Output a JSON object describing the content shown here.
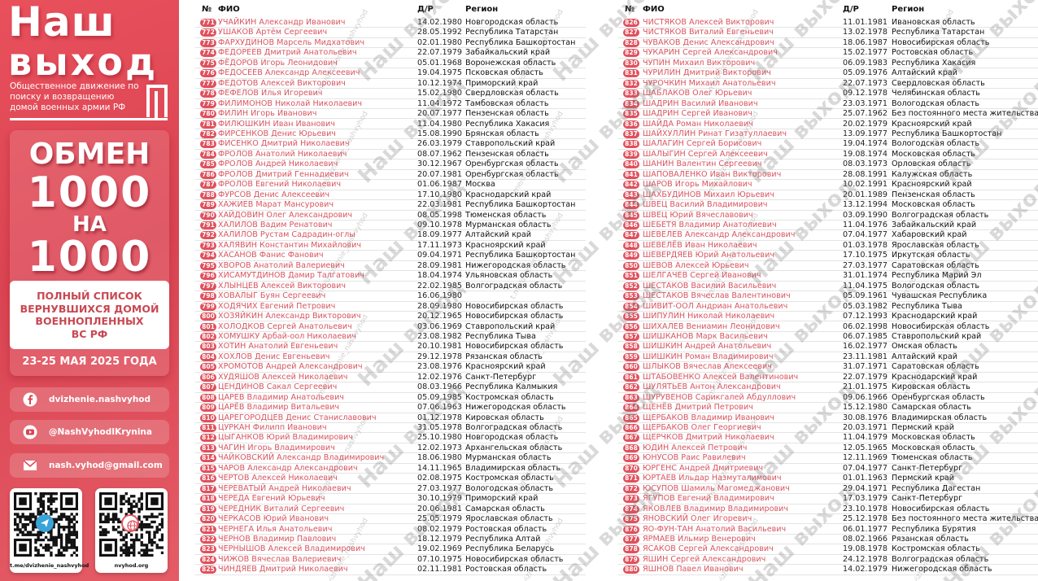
{
  "sidebar": {
    "brand_line1": "Наш",
    "brand_line2": "выход",
    "subtitle": "Общественное движение по поиску и возвращению домой военных армии РФ",
    "exchange": "ОБМЕН",
    "number1": "1000",
    "na": "НА",
    "number2": "1000",
    "list_title_lines": [
      "ПОЛНЫЙ СПИСОК",
      "ВЕРНУВШИХСЯ ДОМОЙ",
      "ВОЕННОПЛЕННЫХ",
      "ВС РФ"
    ],
    "dates": "23-25 МАЯ 2025 ГОДА",
    "contacts": [
      {
        "icon": "facebook-icon",
        "text": "dvizhenie.nashvyhod"
      },
      {
        "icon": "youtube-icon",
        "text": "@NashVyhodIKrynina"
      },
      {
        "icon": "mail-icon",
        "text": "nash.vyhod@gmail.com"
      }
    ],
    "qr_codes": [
      {
        "icon": "telegram-icon",
        "label": "t.me/dvizhenie_nashvyhod",
        "center_color": "#3aa3d8"
      },
      {
        "icon": "globe-icon",
        "label": "nvyhod.org",
        "center_color": "#e05862"
      }
    ]
  },
  "watermark": {
    "brand": "Наш выход",
    "link": "t.me/dvizhenie_nashvyhod"
  },
  "colors": {
    "accent": "#e0505c",
    "name_text": "#d8555f",
    "sidebar_bg": "#db4452"
  },
  "headers": {
    "num": "№",
    "name": "ФИО",
    "dob": "Д/Р",
    "region": "Регион"
  },
  "table_left": {
    "rows": [
      [
        "771",
        "УЧАЙКИН Александр Иванович",
        "14.02.1980",
        "Новгородская область"
      ],
      [
        "772",
        "УШАКОВ Артём Сергеевич",
        "28.05.1992",
        "Республика Татарстан"
      ],
      [
        "773",
        "ФАРХУДИНОВ Марсель Мидхатович",
        "02.01.1980",
        "Республика Башкортостан"
      ],
      [
        "774",
        "ФЕДОРЕЕВ Дмитрий Анатольевич",
        "22.07.1979",
        "Забайкальский край"
      ],
      [
        "775",
        "ФЁДОРОВ Игорь Леонидович",
        "05.01.1968",
        "Воронежская область"
      ],
      [
        "776",
        "ФЕДОСЕЕВ Александр Алексеевич",
        "19.04.1975",
        "Псковская область"
      ],
      [
        "777",
        "ФЕДОТОВ Алексей Викторович",
        "10.12.1974",
        "Приморский край"
      ],
      [
        "778",
        "ФЕФЕЛОВ Илья Игоревич",
        "15.02.1980",
        "Свердловская область"
      ],
      [
        "779",
        "ФИЛИМОНОВ Николай Николаевич",
        "11.04.1972",
        "Тамбовская область"
      ],
      [
        "780",
        "ФИЛИН Игорь Иванович",
        "20.07.1977",
        "Пензенская область"
      ],
      [
        "781",
        "ФИЛЮШКИН Иван Иванович",
        "11.04.1980",
        "Республика Хакасия"
      ],
      [
        "782",
        "ФИРСЕНКОВ Денис Юрьевич",
        "15.08.1990",
        "Брянская область"
      ],
      [
        "783",
        "ФИСЕНКО Дмитрий Николаевич",
        "26.03.1979",
        "Ставропольский край"
      ],
      [
        "784",
        "ФРОЛОВ Анатолий Николаевич",
        "08.07.1962",
        "Пензенская область"
      ],
      [
        "785",
        "ФРОЛОВ Андрей Николаевич",
        "30.12.1967",
        "Оренбургская область"
      ],
      [
        "786",
        "ФРОЛОВ Дмитрий Геннадиевич",
        "20.07.1981",
        "Оренбургская область"
      ],
      [
        "787",
        "ФРОЛОВ Евгений Николаевич",
        "01.06.1987",
        "Москва"
      ],
      [
        "788",
        "ФУРСОВ Денис Алексеевич",
        "17.10.1980",
        "Краснодарский край"
      ],
      [
        "789",
        "ХАЖИЕВ Марат Мансурович",
        "22.03.1981",
        "Республика Башкортостан"
      ],
      [
        "790",
        "ХАЙДОВИН Олег Александрович",
        "08.05.1998",
        "Тюменская область"
      ],
      [
        "791",
        "ХАЛИЛОВ Вадим Ренатович",
        "09.10.1978",
        "Мурманская область"
      ],
      [
        "792",
        "ХАЛИЛОВ Рустам Садрадин-оглы",
        "18.09.1977",
        "Алтайский край"
      ],
      [
        "793",
        "ХАЛЯВИН Константин Михайлович",
        "17.11.1973",
        "Красноярский край"
      ],
      [
        "794",
        "ХАСАНОВ Фанис Фанович",
        "09.04.1971",
        "Республика Башкортостан"
      ],
      [
        "795",
        "ХВОРОВ Анатолий Валериевич",
        "28.09.1981",
        "Нижегородская область"
      ],
      [
        "796",
        "ХИСАМУТДИНОВ Дамир Талгатович",
        "18.04.1974",
        "Ульяновская область"
      ],
      [
        "797",
        "ХЛЫНЦЕВ Алексей Викторович",
        "22.02.1985",
        "Волгоградская область"
      ],
      [
        "798",
        "ХОВАЛЫГ Буян Сергеевич",
        "16.06.1980",
        ""
      ],
      [
        "799",
        "ХОДЯЧИХ Евгений Петрович",
        "28.09.1980",
        "Новосибирская область"
      ],
      [
        "800",
        "ХОЗЯЙКИН Александр Викторович",
        "20.12.1965",
        "Новосибирская область"
      ],
      [
        "801",
        "ХОЛОДКОВ Сергей Анатольевич",
        "03.06.1969",
        "Ставропольский край"
      ],
      [
        "802",
        "ХОМУШКУ Арбай-оол Николаевич",
        "23.08.1982",
        "Республика Тыва"
      ],
      [
        "803",
        "ХОТИН Анатолий Евгеньевич",
        "20.10.1981",
        "Новосибирская область"
      ],
      [
        "804",
        "ХОХЛОВ Денис Евгеньевич",
        "29.12.1978",
        "Рязанская область"
      ],
      [
        "805",
        "ХРОМОТОВ Андрей Александрович",
        "23.08.1976",
        "Красноярский край"
      ],
      [
        "806",
        "ХУДЯШОВ Алексей Николаевич",
        "12.02.1976",
        "Санкт-Петербург"
      ],
      [
        "807",
        "ЦЕНДИНОВ Сакал Сергеевич",
        "08.03.1966",
        "Республика Калмыкия"
      ],
      [
        "808",
        "ЦАРЕВ Владимир Анатольевич",
        "05.09.1985",
        "Костромская область"
      ],
      [
        "809",
        "ЦАРЁВ Владимир Витальевич",
        "07.06.1963",
        "Нижегородская область"
      ],
      [
        "810",
        "ЦАРЕГОРОДЦЕВ Денис Станиславович",
        "01.12.1978",
        "Кировская область"
      ],
      [
        "811",
        "ЦУРКАН Филипп Иванович",
        "31.05.1978",
        "Волгоградская область"
      ],
      [
        "812",
        "ЦЫГАНКОВ Юрий Владимирович",
        "25.10.1980",
        "Новгородская область"
      ],
      [
        "813",
        "ЧАГИН Игорь Владимирович",
        "12.02.1973",
        "Архангельская область"
      ],
      [
        "814",
        "ЧАЙКОВСКИЙ Александр Владимирович",
        "18.06.1980",
        "Мурманская область"
      ],
      [
        "815",
        "ЧАРОВ Александр Александрович",
        "14.11.1965",
        "Владимирская область"
      ],
      [
        "816",
        "ЧЕРТОВ Алексей Николаевич",
        "02.08.1975",
        "Костромская область"
      ],
      [
        "817",
        "ЧЕРЕВАТЫЙ Андрей Николаевич",
        "27.03.1977",
        "Вологодская область"
      ],
      [
        "818",
        "ЧЕРЕДА Евгений Юрьевич",
        "30.10.1979",
        "Приморский край"
      ],
      [
        "819",
        "ЧЕРЕДНИК Виталий Сергеевич",
        "20.06.1981",
        "Самарская область"
      ],
      [
        "820",
        "ЧЕРКАСОВ Юрий Иванович",
        "25.05.1979",
        "Ярославская область"
      ],
      [
        "821",
        "ЧЕРНЕГА Илья Анатольевич",
        "08.02.1979",
        "Ростовская область"
      ],
      [
        "822",
        "ЧЕРНОВ Владимир Павлович",
        "18.12.1979",
        "Республика Алтай"
      ],
      [
        "823",
        "ЧЕРНЫШОВ Алексей Владимирович",
        "19.02.1969",
        "Республика Беларусь"
      ],
      [
        "824",
        "ЧИЖОВ Вячеслав Валериевич",
        "07.10.1975",
        "Новосибирская область"
      ],
      [
        "825",
        "ЧИНДЯЕВ Дмитрий Николаевич",
        "02.11.1981",
        "Ростовская область"
      ]
    ]
  },
  "table_right": {
    "rows": [
      [
        "826",
        "ЧИСТЯКОВ Алексей Викторович",
        "11.01.1981",
        "Ивановская область"
      ],
      [
        "827",
        "ЧИСТЯКОВ Виталий Евгеньевич",
        "13.02.1978",
        "Республика Татарстан"
      ],
      [
        "828",
        "ЧУВАКОВ Денис Александрович",
        "18.06.1987",
        "Новосибирская область"
      ],
      [
        "829",
        "ЧУКАРИН Сергей Александрович",
        "15.02.1977",
        "Ростовская область"
      ],
      [
        "830",
        "ЧУПИН Михаил Викторович",
        "06.09.1983",
        "Республика Хакасия"
      ],
      [
        "831",
        "ЧУРИЛИН Дмитрий Викторович",
        "05.09.1976",
        "Алтайский край"
      ],
      [
        "832",
        "ЧУРОЧКИН Михаил Анатольевич",
        "22.07.1973",
        "Свердловская область"
      ],
      [
        "833",
        "ШАБЛАКОВ Олег Юрьевич",
        "09.12.1978",
        "Челябинская область"
      ],
      [
        "834",
        "ШАДРИН Василий Иванович",
        "23.03.1971",
        "Вологодская область"
      ],
      [
        "835",
        "ШАДРИН Сергей Иванович",
        "25.07.1962",
        "Без постоянного места жительства"
      ],
      [
        "836",
        "ШАЙДА Роман Николаевич",
        "20.02.1979",
        "Красноярский край"
      ],
      [
        "837",
        "ШАЙХУЛЛИН Ринат Гизатуллаевич",
        "13.09.1977",
        "Республика Башкортостан"
      ],
      [
        "838",
        "ШАЛАГИН Сергей Борисович",
        "19.04.1974",
        "Вологодская область"
      ],
      [
        "839",
        "ШАЛЫГИН Сергей Алексеевич",
        "19.08.1974",
        "Московская область"
      ],
      [
        "840",
        "ШАНИН Валентин Сергеевич",
        "08.03.1973",
        "Орловская область"
      ],
      [
        "841",
        "ШАПОВАЛЕНКО Иван Викторович",
        "28.08.1991",
        "Калужская область"
      ],
      [
        "842",
        "ШАРОВ Игорь Михайлович",
        "10.02.1991",
        "Красноярский край"
      ],
      [
        "843",
        "ШАХБУДИНОВ Михаил Юрьевич",
        "20.01.1989",
        "Пензенская область"
      ],
      [
        "844",
        "ШВЕЦ Василий Владимирович",
        "13.12.1994",
        "Московская область"
      ],
      [
        "845",
        "ШВЕЦ Юрий Вячеславович",
        "03.09.1990",
        "Волгоградская область"
      ],
      [
        "846",
        "ШЕБЕТЯ Владимир Анатолиевич",
        "11.04.1976",
        "Забайкальский край"
      ],
      [
        "847",
        "ШЕВЕЛЕВ Александр Александрович",
        "07.04.1977",
        "Хабаровский край"
      ],
      [
        "848",
        "ШЕВЕЛЁВ Иван Николаевич",
        "01.03.1978",
        "Ярославская область"
      ],
      [
        "849",
        "ШЕВЕРДЯЕВ Юрий Анатольевич",
        "17.10.1975",
        "Иркутская область"
      ],
      [
        "850",
        "ШЕВОВ Алексей Юрьевич",
        "27.03.1977",
        "Саратовская область"
      ],
      [
        "851",
        "ШЕЛГАЧЕВ Сергей Иванович",
        "31.01.1974",
        "Республика Марий Эл"
      ],
      [
        "852",
        "ШЕСТАКОВ Василий Васильевич",
        "11.04.1975",
        "Вологодская область"
      ],
      [
        "853",
        "ШЕСТАКОВ Вячеслав Валентинович",
        "05.09.1961",
        "Чувашская Республика"
      ],
      [
        "854",
        "ШИВИТ-ООЛ Андриан Анатольевич",
        "05.03.1982",
        "Республика Тыва"
      ],
      [
        "855",
        "ШИПУЛИН Николай Николаевич",
        "07.12.1993",
        "Краснодарский край"
      ],
      [
        "856",
        "ШИХАЛЕВ Вениамин Леонидович",
        "06.02.1998",
        "Новосибирская область"
      ],
      [
        "857",
        "ШИШКАНОВ Марк Васильевич",
        "06.07.1985",
        "Ставропольский край"
      ],
      [
        "858",
        "ШИШКИН Андрей Анатольевич",
        "16.02.1977",
        "Омская область"
      ],
      [
        "859",
        "ШИШКИН Роман Владимирович",
        "23.11.1981",
        "Алтайский край"
      ],
      [
        "860",
        "ШЛЫКОВ Вячеслав Алексеевич",
        "31.07.1971",
        "Саратовская область"
      ],
      [
        "861",
        "ШТАБОВЕНКО Алексей Валентинович",
        "22.07.1979",
        "Краснодарский край"
      ],
      [
        "862",
        "ШУЛЯТЬЕВ Антон Александрович",
        "21.01.1975",
        "Кировская область"
      ],
      [
        "863",
        "ШУРУВЕНОВ Сарикгалей Абдуллович",
        "09.06.1966",
        "Оренбургская область"
      ],
      [
        "864",
        "ЩЕНЁВ Дмитрий Петрович",
        "15.12.1980",
        "Самарская область"
      ],
      [
        "865",
        "ЩЕРБАКОВ Владимир Иванович",
        "30.08.1976",
        "Владимирская область"
      ],
      [
        "866",
        "ЩЕРБАКОВ Олег Георгиевич",
        "20.03.1971",
        "Пермский край"
      ],
      [
        "867",
        "ЩЕРЧКОВ Дмитрий Николаевич",
        "11.04.1979",
        "Московская область"
      ],
      [
        "868",
        "ЮДИН Алексей Петрович",
        "12.05.1965",
        "Московская область"
      ],
      [
        "869",
        "ЮНУСОВ Раис Равилевич",
        "12.11.1969",
        "Тюменская область"
      ],
      [
        "870",
        "ЮРГЕНС Андрей Дмитриевич",
        "07.04.1977",
        "Санкт-Петербург"
      ],
      [
        "871",
        "ЮРТАЕВ Ильдар Назмуталимович",
        "01.01.1963",
        "Пермский край"
      ],
      [
        "872",
        "ЮСУПОВ Шамиль Магомеджанович",
        "29.04.1971",
        "Республика Дагестан"
      ],
      [
        "873",
        "ЯГУПОВ Евгений Владимирович",
        "17.03.1979",
        "Санкт-Петербург"
      ],
      [
        "874",
        "ЯКОВЛЕВ Владимир Владимирович",
        "23.10.1978",
        "Новосибирская область"
      ],
      [
        "875",
        "ЯНОВСКИЙ Олег Игоревич",
        "25.12.1978",
        "Без постоянного места жительства"
      ],
      [
        "876",
        "ЯО-ФУН-ТАН Анатолий Васильевич",
        "06.01.1977",
        "Республика Бурятия"
      ],
      [
        "877",
        "ЯРМАЕВ Ильмир Венерович",
        "08.02.1966",
        "Рязанская область"
      ],
      [
        "878",
        "ЯСАКОВ Сергей Александрович",
        "19.08.1978",
        "Костромская область"
      ],
      [
        "879",
        "ЯШИН Сергей Александрович",
        "24.12.1978",
        "Волгоградская область"
      ],
      [
        "880",
        "ЯШНОВ Павел Иванович",
        "14.02.1979",
        "Нижегородская область"
      ]
    ]
  }
}
